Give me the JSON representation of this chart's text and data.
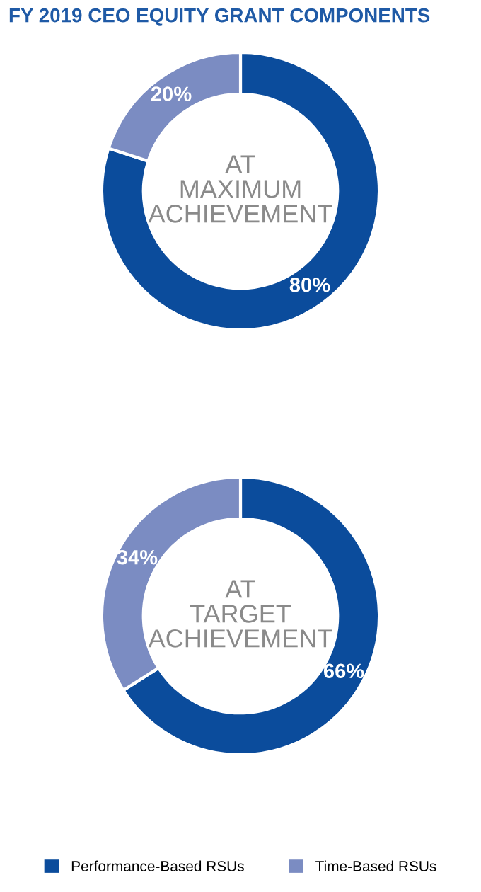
{
  "chart_data": [
    {
      "type": "donut",
      "title": "FY 2019 CEO EQUITY GRANT COMPONENTS",
      "categories": [
        "Performance-Based RSUs",
        "Time-Based RSUs"
      ],
      "values": [
        80,
        20
      ],
      "colors": [
        "#0b4c9c",
        "#7b8cc2"
      ],
      "value_labels": [
        "80%",
        "20%"
      ],
      "annotations": [
        "AT\nMAXIMUM\nACHIEVEMENT"
      ],
      "legend": "bottom"
    },
    {
      "type": "donut",
      "values": [
        66,
        34
      ],
      "colors": [
        "#0b4c9c",
        "#7b8cc2"
      ],
      "value_labels": [
        "66%",
        "34%"
      ],
      "annotations": [
        "AT\nTARGET\nACHIEVEMENT"
      ],
      "legend": false
    }
  ]
}
